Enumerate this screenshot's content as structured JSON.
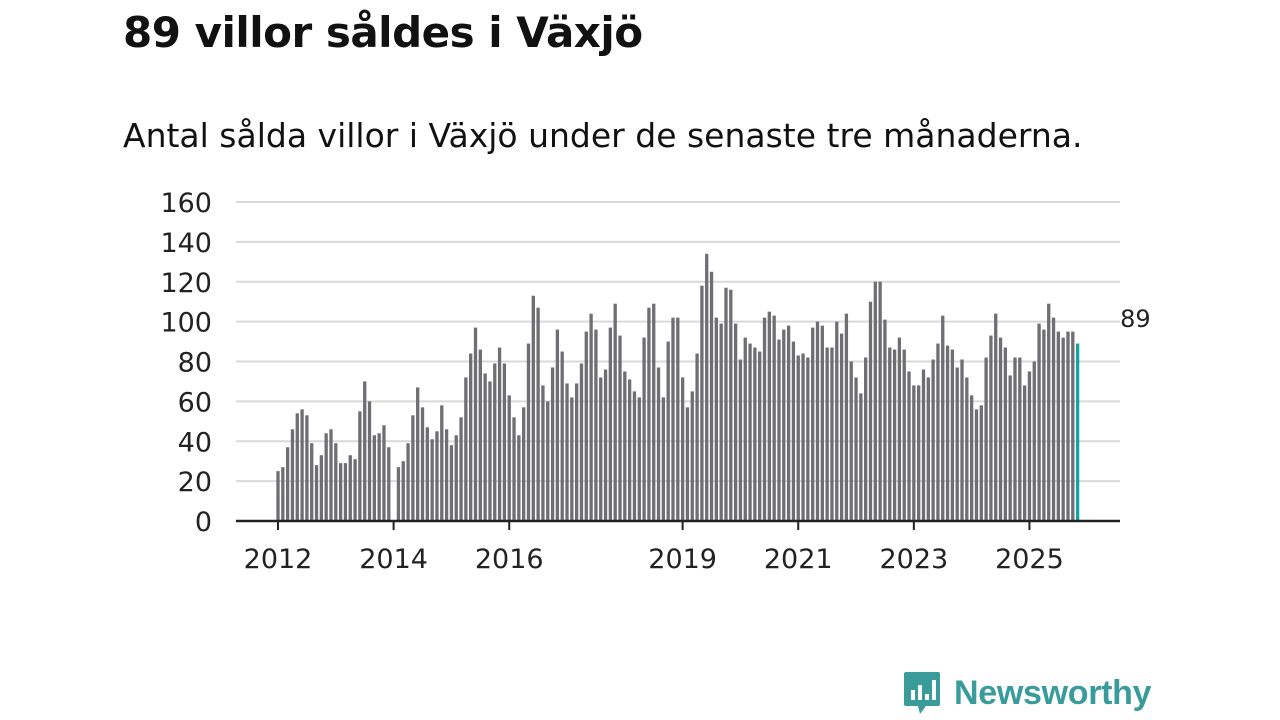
{
  "title": "89 villor såldes i Växjö",
  "subtitle": "Antal sålda villor i Växjö under de senaste tre månaderna.",
  "brand": {
    "name": "Newsworthy",
    "color": "#3a9b9b",
    "icon": "newsworthy-logo-icon"
  },
  "colors": {
    "bar": "#6e6e73",
    "highlight": "#13a3a3",
    "grid": "#d9d9d9",
    "axis": "#222222",
    "text": "#222222"
  },
  "chart_data": {
    "type": "bar",
    "title": "Antal sålda villor i Växjö under de senaste tre månaderna.",
    "xlabel": "",
    "ylabel": "",
    "ylim": [
      0,
      160
    ],
    "yticks": [
      0,
      20,
      40,
      60,
      80,
      100,
      120,
      140,
      160
    ],
    "x_tick_labels": [
      {
        "label": "2012",
        "index": 0
      },
      {
        "label": "2014",
        "index": 24
      },
      {
        "label": "2016",
        "index": 48
      },
      {
        "label": "2019",
        "index": 84
      },
      {
        "label": "2021",
        "index": 108
      },
      {
        "label": "2023",
        "index": 132
      },
      {
        "label": "2025",
        "index": 156
      }
    ],
    "start": "2012-01",
    "values": [
      25,
      27,
      37,
      46,
      54,
      56,
      53,
      39,
      28,
      33,
      44,
      46,
      39,
      29,
      29,
      33,
      31,
      55,
      70,
      60,
      43,
      44,
      48,
      37,
      0,
      27,
      30,
      39,
      53,
      67,
      57,
      47,
      41,
      45,
      58,
      46,
      38,
      43,
      52,
      72,
      84,
      97,
      86,
      74,
      70,
      79,
      87,
      79,
      63,
      52,
      43,
      57,
      89,
      113,
      107,
      68,
      60,
      77,
      96,
      85,
      69,
      62,
      69,
      79,
      95,
      104,
      96,
      72,
      76,
      97,
      109,
      93,
      75,
      71,
      65,
      62,
      92,
      107,
      109,
      77,
      62,
      90,
      102,
      102,
      72,
      57,
      65,
      84,
      118,
      134,
      125,
      102,
      99,
      117,
      116,
      99,
      81,
      92,
      89,
      87,
      85,
      102,
      105,
      103,
      91,
      96,
      98,
      90,
      83,
      84,
      82,
      97,
      100,
      98,
      87,
      87,
      100,
      94,
      104,
      80,
      72,
      64,
      82,
      110,
      120,
      120,
      101,
      87,
      86,
      92,
      86,
      75,
      68,
      68,
      76,
      72,
      81,
      89,
      103,
      88,
      86,
      77,
      81,
      72,
      63,
      56,
      58,
      82,
      93,
      104,
      92,
      87,
      73,
      82,
      82,
      68,
      75,
      80,
      99,
      96,
      109,
      102,
      95,
      92,
      95,
      95,
      89
    ],
    "highlight_last": true,
    "annotation": {
      "index": 178,
      "label": "89"
    }
  }
}
